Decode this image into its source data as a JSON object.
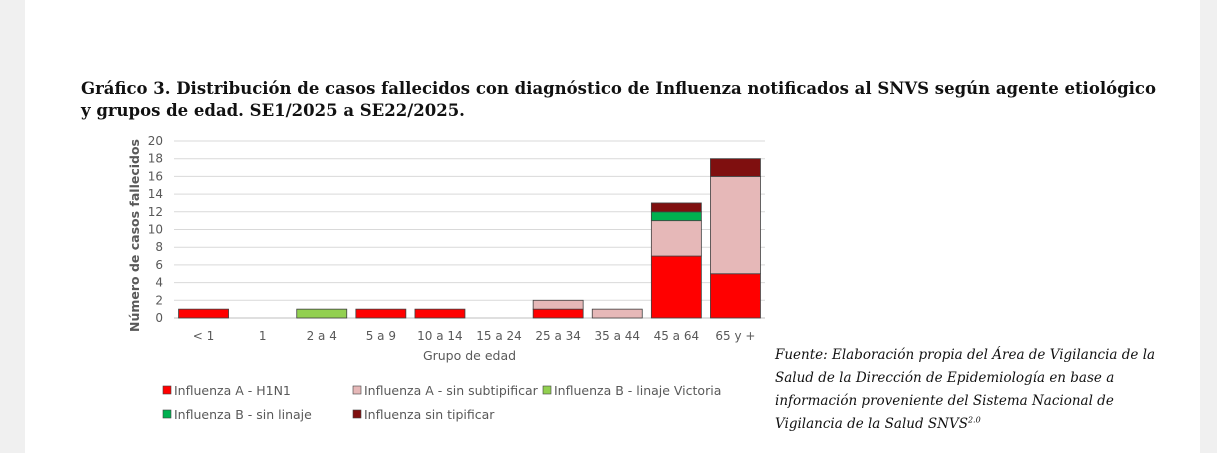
{
  "figure": {
    "title": "Gráfico 3. Distribución de casos fallecidos con diagnóstico de Influenza notificados al SNVS según agente etiológico y grupos de edad. SE1/2025 a SE22/2025.",
    "source_text": "Fuente: Elaboración propia del Área de Vigilancia de la Salud de la Dirección de Epidemiología en base a información proveniente del Sistema Nacional de Vigilancia de la Salud SNVS",
    "source_sup": "2.0"
  },
  "chart_data": {
    "type": "bar",
    "stacked": true,
    "title": "",
    "xlabel": "Grupo de edad",
    "ylabel": "Número de casos fallecidos",
    "ylim": [
      0,
      20
    ],
    "yticks": [
      0,
      2,
      4,
      6,
      8,
      10,
      12,
      14,
      16,
      18,
      20
    ],
    "grid": true,
    "legend_position": "bottom",
    "categories": [
      "< 1",
      "1",
      "2 a 4",
      "5 a 9",
      "10 a 14",
      "15 a 24",
      "25 a 34",
      "35 a 44",
      "45 a 64",
      "65 y +"
    ],
    "series": [
      {
        "name": "Influenza A - H1N1",
        "color": "#ff0000",
        "values": [
          1,
          0,
          0,
          1,
          1,
          0,
          1,
          0,
          7,
          5
        ]
      },
      {
        "name": "Influenza A - sin subtipificar",
        "color": "#e6b8b8",
        "values": [
          0,
          0,
          0,
          0,
          0,
          0,
          1,
          1,
          4,
          11
        ]
      },
      {
        "name": "Influenza B - linaje Victoria",
        "color": "#92d050",
        "values": [
          0,
          0,
          1,
          0,
          0,
          0,
          0,
          0,
          0,
          0
        ]
      },
      {
        "name": "Influenza B - sin linaje",
        "color": "#00b050",
        "values": [
          0,
          0,
          0,
          0,
          0,
          0,
          0,
          0,
          1,
          0
        ]
      },
      {
        "name": "Influenza sin tipificar",
        "color": "#7f0f0f",
        "values": [
          0,
          0,
          0,
          0,
          0,
          0,
          0,
          0,
          1,
          2
        ]
      }
    ]
  }
}
